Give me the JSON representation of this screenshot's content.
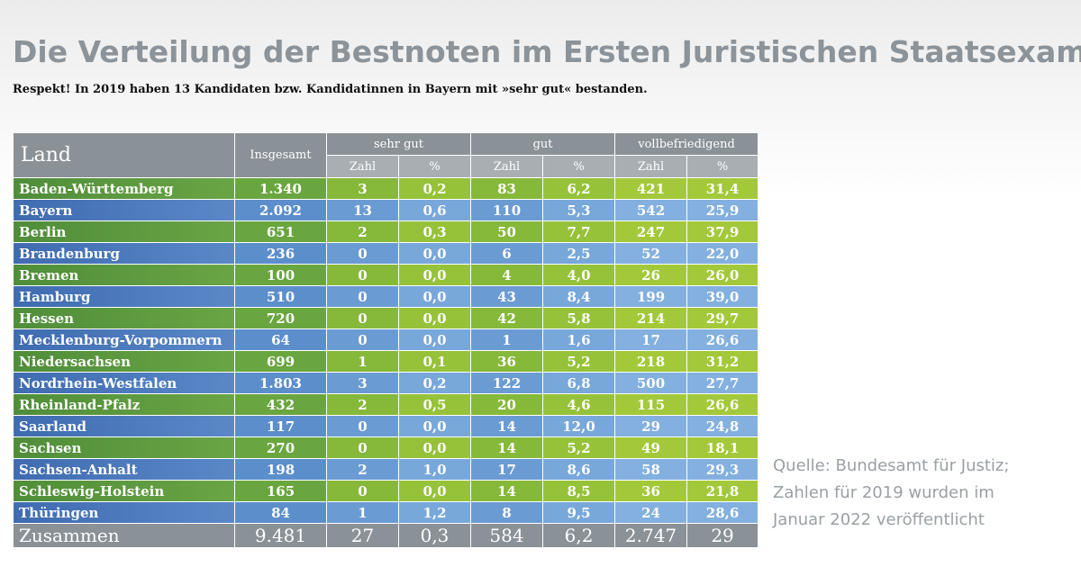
{
  "title": "Die Verteilung der Bestnoten im Ersten Juristischen Staatsexamen",
  "subtitle": "Respekt! In 2019 haben 13 Kandidaten bzw. Kandidatinnen in Bayern mit »sehr gut« bestanden.",
  "colors": {
    "title": "#8c9399",
    "header": "#8a9197",
    "green_row": "#6aa63f",
    "blue_row": "#5c8ecb"
  },
  "table": {
    "header_land": "Land",
    "header_total": "Insgesamt",
    "groups": [
      "sehr gut",
      "gut",
      "vollbefriedigend"
    ],
    "sub_zahl": "Zahl",
    "sub_pct": "%",
    "rows": [
      {
        "land": "Baden-Württemberg",
        "insgesamt": "1.340",
        "sg_zahl": "3",
        "sg_pct": "0,2",
        "gut_zahl": "83",
        "gut_pct": "6,2",
        "vb_zahl": "421",
        "vb_pct": "31,4"
      },
      {
        "land": "Bayern",
        "insgesamt": "2.092",
        "sg_zahl": "13",
        "sg_pct": "0,6",
        "gut_zahl": "110",
        "gut_pct": "5,3",
        "vb_zahl": "542",
        "vb_pct": "25,9"
      },
      {
        "land": "Berlin",
        "insgesamt": "651",
        "sg_zahl": "2",
        "sg_pct": "0,3",
        "gut_zahl": "50",
        "gut_pct": "7,7",
        "vb_zahl": "247",
        "vb_pct": "37,9"
      },
      {
        "land": "Brandenburg",
        "insgesamt": "236",
        "sg_zahl": "0",
        "sg_pct": "0,0",
        "gut_zahl": "6",
        "gut_pct": "2,5",
        "vb_zahl": "52",
        "vb_pct": "22,0"
      },
      {
        "land": "Bremen",
        "insgesamt": "100",
        "sg_zahl": "0",
        "sg_pct": "0,0",
        "gut_zahl": "4",
        "gut_pct": "4,0",
        "vb_zahl": "26",
        "vb_pct": "26,0"
      },
      {
        "land": "Hamburg",
        "insgesamt": "510",
        "sg_zahl": "0",
        "sg_pct": "0,0",
        "gut_zahl": "43",
        "gut_pct": "8,4",
        "vb_zahl": "199",
        "vb_pct": "39,0"
      },
      {
        "land": "Hessen",
        "insgesamt": "720",
        "sg_zahl": "0",
        "sg_pct": "0,0",
        "gut_zahl": "42",
        "gut_pct": "5,8",
        "vb_zahl": "214",
        "vb_pct": "29,7"
      },
      {
        "land": "Mecklenburg-Vorpommern",
        "insgesamt": "64",
        "sg_zahl": "0",
        "sg_pct": "0,0",
        "gut_zahl": "1",
        "gut_pct": "1,6",
        "vb_zahl": "17",
        "vb_pct": "26,6"
      },
      {
        "land": "Niedersachsen",
        "insgesamt": "699",
        "sg_zahl": "1",
        "sg_pct": "0,1",
        "gut_zahl": "36",
        "gut_pct": "5,2",
        "vb_zahl": "218",
        "vb_pct": "31,2"
      },
      {
        "land": "Nordrhein-Westfalen",
        "insgesamt": "1.803",
        "sg_zahl": "3",
        "sg_pct": "0,2",
        "gut_zahl": "122",
        "gut_pct": "6,8",
        "vb_zahl": "500",
        "vb_pct": "27,7"
      },
      {
        "land": "Rheinland-Pfalz",
        "insgesamt": "432",
        "sg_zahl": "2",
        "sg_pct": "0,5",
        "gut_zahl": "20",
        "gut_pct": "4,6",
        "vb_zahl": "115",
        "vb_pct": "26,6"
      },
      {
        "land": "Saarland",
        "insgesamt": "117",
        "sg_zahl": "0",
        "sg_pct": "0,0",
        "gut_zahl": "14",
        "gut_pct": "12,0",
        "vb_zahl": "29",
        "vb_pct": "24,8"
      },
      {
        "land": "Sachsen",
        "insgesamt": "270",
        "sg_zahl": "0",
        "sg_pct": "0,0",
        "gut_zahl": "14",
        "gut_pct": "5,2",
        "vb_zahl": "49",
        "vb_pct": "18,1"
      },
      {
        "land": "Sachsen-Anhalt",
        "insgesamt": "198",
        "sg_zahl": "2",
        "sg_pct": "1,0",
        "gut_zahl": "17",
        "gut_pct": "8,6",
        "vb_zahl": "58",
        "vb_pct": "29,3"
      },
      {
        "land": "Schleswig-Holstein",
        "insgesamt": "165",
        "sg_zahl": "0",
        "sg_pct": "0,0",
        "gut_zahl": "14",
        "gut_pct": "8,5",
        "vb_zahl": "36",
        "vb_pct": "21,8"
      },
      {
        "land": "Thüringen",
        "insgesamt": "84",
        "sg_zahl": "1",
        "sg_pct": "1,2",
        "gut_zahl": "8",
        "gut_pct": "9,5",
        "vb_zahl": "24",
        "vb_pct": "28,6"
      }
    ],
    "total": {
      "land": "Zusammen",
      "insgesamt": "9.481",
      "sg_zahl": "27",
      "sg_pct": "0,3",
      "gut_zahl": "584",
      "gut_pct": "6,2",
      "vb_zahl": "2.747",
      "vb_pct": "29"
    }
  },
  "source": {
    "line1": "Quelle: Bundesamt für Justiz;",
    "line2": "Zahlen für 2019 wurden im",
    "line3": "Januar 2022 veröffentlicht"
  }
}
